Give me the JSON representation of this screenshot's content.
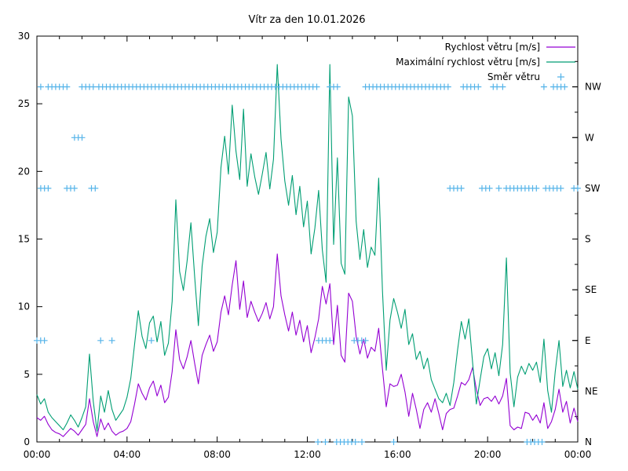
{
  "title": "Vítr za den 10.01.2026",
  "legend": [
    {
      "label": "Rychlost větru [m/s]",
      "marker": "line",
      "color": "#9400d3"
    },
    {
      "label": "Maximální rychlost větru [m/s]",
      "marker": "line",
      "color": "#009e73"
    },
    {
      "label": "Směr větru",
      "marker": "plus",
      "color": "#56b4e9"
    }
  ],
  "chart_data": {
    "type": "line",
    "title": "Vítr za den 10.01.2026",
    "grid": false,
    "legend_position": "top-right-inside",
    "x_axis": {
      "range_hours": [
        0,
        24
      ],
      "major_tick_hours": [
        0,
        4,
        8,
        12,
        16,
        20,
        24
      ],
      "tick_labels": [
        "00:00",
        "04:00",
        "08:00",
        "12:00",
        "16:00",
        "20:00",
        "00:00"
      ],
      "minor_step_hours": 1,
      "mirror_top": true
    },
    "y_axis": {
      "range": [
        0,
        30
      ],
      "ticks": [
        0,
        5,
        10,
        15,
        20,
        25,
        30
      ],
      "tick_labels": [
        "0",
        "5",
        "10",
        "15",
        "20",
        "25",
        "30"
      ]
    },
    "y2_axis": {
      "labels": [
        "N",
        "NE",
        "E",
        "SE",
        "S",
        "SW",
        "W",
        "NW"
      ],
      "values": [
        0,
        3.75,
        7.5,
        11.25,
        15,
        18.75,
        22.5,
        26.25
      ],
      "minor_step": 1.875
    },
    "series": [
      {
        "name": "Rychlost větru [m/s]",
        "color": "#9400d3",
        "dt_hours": 0.1666667,
        "values": [
          1.8,
          1.6,
          1.9,
          1.3,
          0.9,
          0.7,
          0.6,
          0.4,
          0.7,
          1.0,
          0.8,
          0.5,
          0.9,
          1.3,
          3.2,
          1.5,
          0.4,
          1.7,
          0.9,
          1.4,
          0.8,
          0.5,
          0.7,
          0.8,
          1.0,
          1.5,
          2.8,
          4.3,
          3.6,
          3.1,
          4.0,
          4.5,
          3.4,
          4.2,
          2.9,
          3.3,
          5.2,
          8.3,
          6.1,
          5.4,
          6.3,
          7.5,
          5.8,
          4.3,
          6.4,
          7.2,
          7.9,
          6.7,
          7.4,
          9.6,
          10.8,
          9.4,
          11.6,
          13.4,
          9.8,
          11.9,
          9.2,
          10.4,
          9.6,
          8.9,
          9.5,
          10.3,
          9.1,
          10.0,
          13.9,
          10.8,
          9.4,
          8.2,
          9.6,
          7.9,
          9.0,
          7.4,
          8.6,
          6.6,
          7.7,
          9.1,
          11.5,
          10.2,
          11.7,
          7.2,
          10.1,
          6.4,
          5.9,
          11.0,
          10.4,
          7.8,
          6.5,
          7.6,
          6.2,
          7.0,
          6.7,
          8.4,
          5.4,
          2.6,
          4.3,
          4.1,
          4.2,
          5.0,
          3.7,
          1.9,
          3.6,
          2.4,
          1.0,
          2.4,
          2.9,
          2.2,
          3.2,
          2.1,
          0.9,
          2.1,
          2.4,
          2.5,
          3.4,
          4.4,
          4.2,
          4.6,
          5.5,
          3.9,
          2.7,
          3.2,
          3.3,
          3.0,
          3.4,
          2.8,
          3.4,
          4.7,
          1.2,
          0.9,
          1.1,
          1.0,
          2.2,
          2.1,
          1.6,
          2.0,
          1.4,
          2.9,
          1.0,
          1.5,
          2.4,
          3.9,
          2.2,
          3.0,
          1.4,
          2.5,
          1.5
        ]
      },
      {
        "name": "Maximální rychlost větru [m/s]",
        "color": "#009e73",
        "dt_hours": 0.1666667,
        "values": [
          3.5,
          2.8,
          3.2,
          2.2,
          1.8,
          1.5,
          1.2,
          0.9,
          1.4,
          2.0,
          1.6,
          1.1,
          1.8,
          2.6,
          6.5,
          3.0,
          0.8,
          3.4,
          2.2,
          3.8,
          2.4,
          1.6,
          2.0,
          2.4,
          3.3,
          4.7,
          7.2,
          9.7,
          7.8,
          6.9,
          8.8,
          9.3,
          7.4,
          8.9,
          6.4,
          7.3,
          10.4,
          17.9,
          12.6,
          11.2,
          13.4,
          16.2,
          12.2,
          8.6,
          13.0,
          15.2,
          16.5,
          14.0,
          15.5,
          20.3,
          22.6,
          19.8,
          24.9,
          21.5,
          19.4,
          24.6,
          18.9,
          21.3,
          19.6,
          18.3,
          19.8,
          21.4,
          18.7,
          20.9,
          27.9,
          22.4,
          19.3,
          17.5,
          19.7,
          16.8,
          18.9,
          15.9,
          17.8,
          13.9,
          15.8,
          18.6,
          14.2,
          11.8,
          27.9,
          14.6,
          21.0,
          13.2,
          12.4,
          25.5,
          24.1,
          16.3,
          13.5,
          15.7,
          12.9,
          14.4,
          13.8,
          19.5,
          11.2,
          5.3,
          9.0,
          10.6,
          9.6,
          8.4,
          9.8,
          7.2,
          8.0,
          6.1,
          6.7,
          5.4,
          6.2,
          4.6,
          3.9,
          3.2,
          2.9,
          3.6,
          2.7,
          4.4,
          6.8,
          8.9,
          7.6,
          9.1,
          5.9,
          2.8,
          4.6,
          6.3,
          6.9,
          5.4,
          6.6,
          4.9,
          7.2,
          13.6,
          5.1,
          2.6,
          4.8,
          5.6,
          5.0,
          5.8,
          5.3,
          5.9,
          4.4,
          7.6,
          3.8,
          2.2,
          5.2,
          7.5,
          4.1,
          5.3,
          4.0,
          5.2,
          3.9
        ]
      }
    ],
    "direction_markers": {
      "name": "Směr větru",
      "color": "#56b4e9",
      "step_hours": 0.1666667,
      "rows": [
        {
          "dir": "NW",
          "value": 26.25,
          "intervals": [
            [
              0.17,
              0.17
            ],
            [
              0.5,
              1.42
            ],
            [
              2.0,
              2.58
            ],
            [
              2.75,
              12.42
            ],
            [
              13.0,
              13.42
            ],
            [
              14.58,
              18.25
            ],
            [
              18.92,
              19.67
            ],
            [
              20.25,
              20.42
            ],
            [
              20.67,
              20.67
            ],
            [
              22.5,
              22.5
            ],
            [
              22.92,
              23.5
            ]
          ]
        },
        {
          "dir": "W",
          "value": 22.5,
          "intervals": [
            [
              1.67,
              2.08
            ]
          ]
        },
        {
          "dir": "SW",
          "value": 18.75,
          "intervals": [
            [
              0.17,
              0.58
            ],
            [
              1.33,
              1.75
            ],
            [
              2.42,
              2.67
            ],
            [
              18.33,
              18.83
            ],
            [
              19.75,
              20.17
            ],
            [
              20.5,
              20.58
            ],
            [
              20.83,
              21.67
            ],
            [
              21.83,
              22.25
            ],
            [
              22.58,
              23.25
            ],
            [
              23.83,
              24.0
            ]
          ]
        },
        {
          "dir": "E",
          "value": 7.5,
          "intervals": [
            [
              0.0,
              0.42
            ],
            [
              2.83,
              2.83
            ],
            [
              3.33,
              3.33
            ],
            [
              5.08,
              5.08
            ],
            [
              12.5,
              13.08
            ],
            [
              14.08,
              14.58
            ]
          ]
        },
        {
          "dir": "N",
          "value": 0,
          "intervals": [
            [
              12.47,
              12.47
            ],
            [
              12.8,
              12.8
            ],
            [
              13.3,
              14.2
            ],
            [
              14.42,
              14.58
            ],
            [
              15.83,
              15.83
            ],
            [
              21.75,
              22.42
            ]
          ]
        }
      ]
    }
  }
}
